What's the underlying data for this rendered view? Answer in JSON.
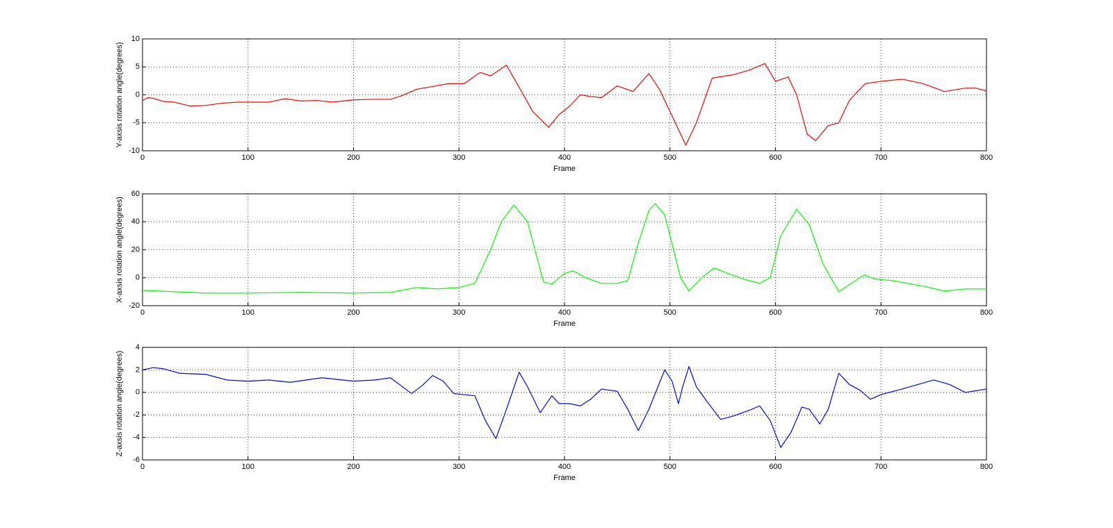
{
  "chart_data": [
    {
      "type": "line",
      "xlabel": "Frame",
      "ylabel": "Y-axsis rotation angle(degrees)",
      "color": "#ff0000",
      "x": [
        0,
        5,
        10,
        20,
        30,
        45,
        60,
        75,
        90,
        120,
        135,
        150,
        165,
        180,
        200,
        220,
        235,
        245,
        260,
        275,
        290,
        305,
        320,
        330,
        345,
        355,
        370,
        385,
        395,
        405,
        415,
        425,
        435,
        450,
        465,
        480,
        490,
        500,
        515,
        525,
        540,
        560,
        575,
        590,
        600,
        612,
        620,
        630,
        638,
        650,
        660,
        670,
        685,
        700,
        720,
        740,
        760,
        780,
        790,
        800
      ],
      "values": [
        -1,
        -0.5,
        -0.6,
        -1.2,
        -1.3,
        -2,
        -1.9,
        -1.5,
        -1.3,
        -1.3,
        -0.7,
        -1.1,
        -1,
        -1.3,
        -0.9,
        -0.8,
        -0.8,
        -0.2,
        1,
        1.5,
        2,
        2,
        4,
        3.4,
        5.3,
        2,
        -3,
        -5.8,
        -3.5,
        -2,
        0,
        -0.3,
        -0.5,
        1.6,
        0.6,
        3.8,
        1,
        -3,
        -9,
        -5,
        3,
        3.6,
        4.4,
        5.6,
        2.4,
        3.2,
        0,
        -7,
        -8.2,
        -5.5,
        -5,
        -1,
        2,
        2.4,
        2.8,
        2,
        0.6,
        1.2,
        1.2,
        0.7
      ],
      "xlim": [
        0,
        800
      ],
      "ylim": [
        -10,
        10
      ],
      "xticks": [
        0,
        100,
        200,
        300,
        400,
        500,
        600,
        700,
        800
      ],
      "yticks": [
        -10,
        -5,
        0,
        5,
        10
      ],
      "grid": true
    },
    {
      "type": "line",
      "xlabel": "Frame",
      "ylabel": "X-axsis rotation angle(degrees)",
      "color": "#00ff00",
      "x": [
        0,
        30,
        60,
        100,
        150,
        200,
        235,
        260,
        280,
        300,
        315,
        330,
        340,
        352,
        365,
        380,
        388,
        400,
        408,
        420,
        435,
        450,
        460,
        470,
        480,
        486,
        495,
        510,
        518,
        530,
        542,
        555,
        570,
        585,
        595,
        605,
        620,
        632,
        645,
        660,
        670,
        684,
        695,
        710,
        740,
        760,
        780,
        800
      ],
      "values": [
        -9,
        -10,
        -11,
        -11,
        -10.5,
        -11,
        -10.5,
        -7,
        -8,
        -7,
        -4,
        20,
        40,
        52,
        40,
        -3,
        -4.5,
        3,
        5,
        0,
        -4,
        -4,
        -2,
        25,
        48,
        53,
        45,
        0,
        -9.5,
        0,
        7,
        3,
        -1,
        -4,
        0,
        30,
        49,
        38,
        10,
        -10,
        -5,
        2,
        -1,
        -2,
        -6,
        -9.5,
        -8,
        -8
      ],
      "xlim": [
        0,
        800
      ],
      "ylim": [
        -20,
        60
      ],
      "xticks": [
        0,
        100,
        200,
        300,
        400,
        500,
        600,
        700,
        800
      ],
      "yticks": [
        -20,
        0,
        20,
        40,
        60
      ],
      "grid": true
    },
    {
      "type": "line",
      "xlabel": "Frame",
      "ylabel": "Z-axsis rotation angle(degrees)",
      "color": "#0000ff",
      "x": [
        0,
        10,
        20,
        35,
        60,
        80,
        100,
        120,
        140,
        170,
        200,
        220,
        235,
        245,
        255,
        265,
        275,
        285,
        295,
        315,
        325,
        335,
        345,
        357,
        365,
        377,
        388,
        395,
        405,
        415,
        425,
        435,
        450,
        460,
        470,
        480,
        495,
        502,
        508,
        512,
        518,
        525,
        535,
        548,
        560,
        575,
        585,
        595,
        605,
        615,
        625,
        632,
        642,
        650,
        660,
        670,
        680,
        690,
        700,
        720,
        750,
        765,
        780,
        800
      ],
      "values": [
        2,
        2.2,
        2.1,
        1.7,
        1.6,
        1.1,
        1,
        1.1,
        0.9,
        1.3,
        1,
        1.1,
        1.3,
        0.6,
        -0.1,
        0.6,
        1.5,
        1,
        -0.1,
        -0.3,
        -2.5,
        -4.1,
        -1.5,
        1.8,
        0.5,
        -1.8,
        -0.3,
        -1,
        -1,
        -1.2,
        -0.6,
        0.3,
        0.1,
        -1.5,
        -3.4,
        -1.5,
        2,
        1,
        -1,
        0.5,
        2.3,
        0.5,
        -0.8,
        -2.4,
        -2.1,
        -1.6,
        -1.2,
        -2.5,
        -4.9,
        -3.5,
        -1.3,
        -1.5,
        -2.8,
        -1.5,
        1.7,
        0.7,
        0.2,
        -0.6,
        -0.2,
        0.3,
        1.1,
        0.7,
        0,
        0.3
      ],
      "xlim": [
        0,
        800
      ],
      "ylim": [
        -6,
        4
      ],
      "xticks": [
        0,
        100,
        200,
        300,
        400,
        500,
        600,
        700,
        800
      ],
      "yticks": [
        -6,
        -4,
        -2,
        0,
        2,
        4
      ],
      "grid": true
    }
  ]
}
